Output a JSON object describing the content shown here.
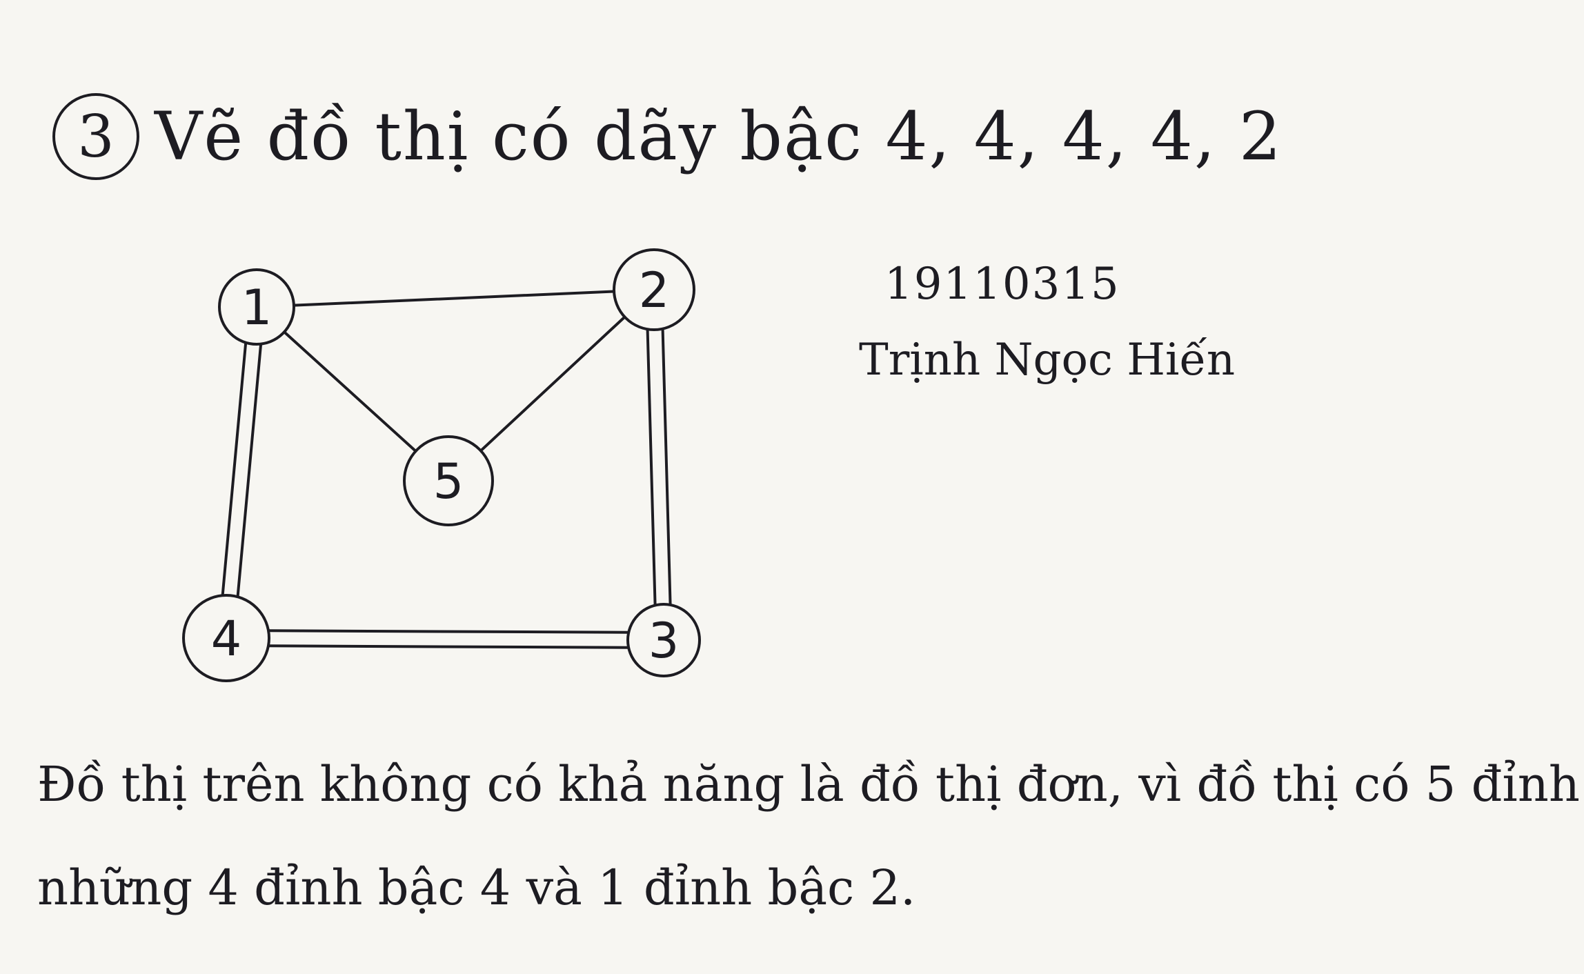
{
  "heading": {
    "exercise_number": "3",
    "text": "Vẽ đồ thị có dãy bậc 4, 4, 4, 4, 2"
  },
  "graph": {
    "nodes": [
      {
        "id": "1",
        "label": "1"
      },
      {
        "id": "2",
        "label": "2"
      },
      {
        "id": "3",
        "label": "3"
      },
      {
        "id": "4",
        "label": "4"
      },
      {
        "id": "5",
        "label": "5"
      }
    ],
    "edges": [
      {
        "from": "1",
        "to": "2",
        "multiplicity": 1
      },
      {
        "from": "1",
        "to": "5",
        "multiplicity": 1
      },
      {
        "from": "2",
        "to": "5",
        "multiplicity": 1
      },
      {
        "from": "1",
        "to": "4",
        "multiplicity": 2
      },
      {
        "from": "2",
        "to": "3",
        "multiplicity": 2
      },
      {
        "from": "4",
        "to": "3",
        "multiplicity": 2
      }
    ]
  },
  "author": {
    "student_id": "19110315",
    "name": "Trịnh Ngọc Hiến"
  },
  "conclusion": {
    "line1": "Đồ thị trên không có khả năng là đồ thị đơn, vì đồ thị có 5 đỉnh",
    "line2": "những 4 đỉnh bậc 4 và 1 đỉnh bậc 2."
  }
}
